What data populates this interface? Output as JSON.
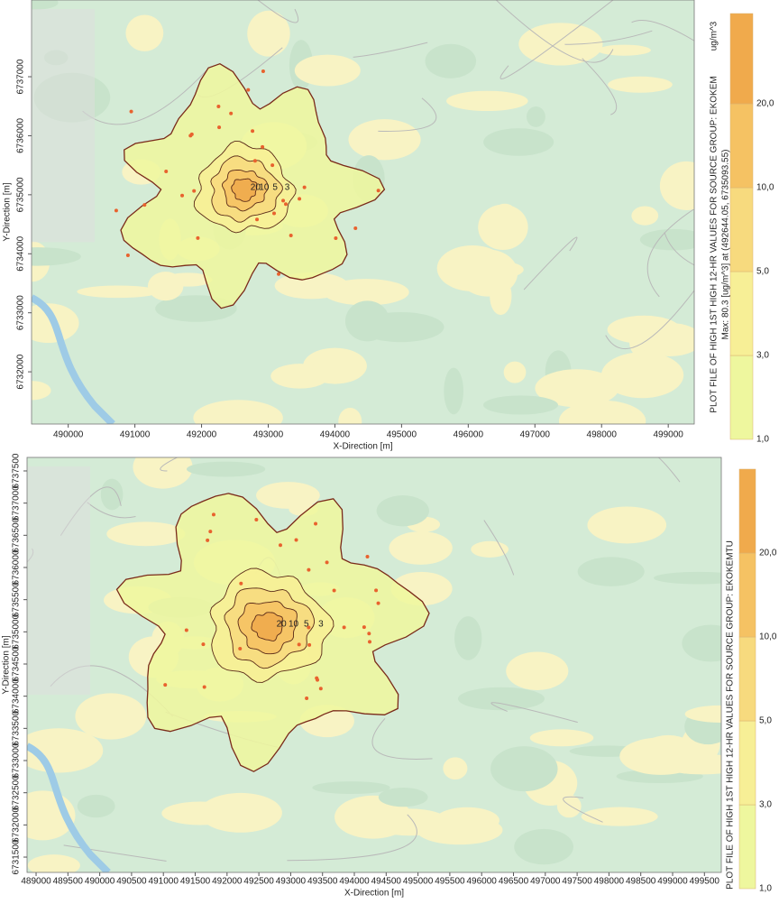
{
  "panels": [
    {
      "x_label": "X-Direction [m]",
      "y_label": "Y-Direction [m]",
      "xlim": [
        489450,
        499390
      ],
      "ylim": [
        6731115,
        6738300
      ],
      "xticks": [
        490000,
        491000,
        492000,
        493000,
        494000,
        495000,
        496000,
        497000,
        498000,
        499000
      ],
      "yticks": [
        6732000,
        6733000,
        6734000,
        6735000,
        6736000,
        6737000
      ],
      "contour_labels": [
        3,
        5,
        10,
        20
      ],
      "legend": {
        "title": "PLOT FILE OF HIGH 1ST HIGH 12-HR VALUES FOR SOURCE GROUP: EKOKEM",
        "max_text": "Max:  80.3  [ug/m^3]  at  (492644.05, 6735093.55)",
        "unit": "ug/m^3",
        "levels": [
          {
            "value": 1,
            "label": "1,0"
          },
          {
            "value": 3,
            "label": "3,0"
          },
          {
            "value": 5,
            "label": "5,0"
          },
          {
            "value": 10,
            "label": "10,0"
          },
          {
            "value": 20,
            "label": "20,0"
          }
        ],
        "colors": [
          "#eef79e",
          "#f7ef96",
          "#f7da7e",
          "#f5c263",
          "#f0aa4c"
        ]
      }
    },
    {
      "x_label": "X-Direction [m]",
      "y_label": "Y-Direction [m]",
      "xlim": [
        488858,
        499765
      ],
      "ylim": [
        6731262,
        6737710
      ],
      "xticks": [
        489000,
        489500,
        490000,
        490500,
        491000,
        491500,
        492000,
        492500,
        493000,
        493500,
        494000,
        494500,
        495000,
        495500,
        496000,
        496500,
        497000,
        497500,
        498000,
        498500,
        499000,
        499500
      ],
      "yticks": [
        6731500,
        6732000,
        6732500,
        6733000,
        6733500,
        6734000,
        6734500,
        6735000,
        6735500,
        6736000,
        6736500,
        6737000,
        6737500
      ],
      "contour_labels": [
        3,
        5,
        10,
        20
      ],
      "legend": {
        "title": "PLOT FILE OF HIGH 1ST HIGH 12-HR VALUES FOR SOURCE GROUP: EKOKEMTU",
        "levels": [
          {
            "value": 1,
            "label": "1,0"
          },
          {
            "value": 3,
            "label": "3,0"
          },
          {
            "value": 5,
            "label": "5,0"
          },
          {
            "value": 10,
            "label": "10,0"
          },
          {
            "value": 20,
            "label": "20,0"
          }
        ],
        "colors": [
          "#eef79e",
          "#f7ef96",
          "#f7da7e",
          "#f5c263",
          "#f0aa4c"
        ]
      }
    }
  ]
}
